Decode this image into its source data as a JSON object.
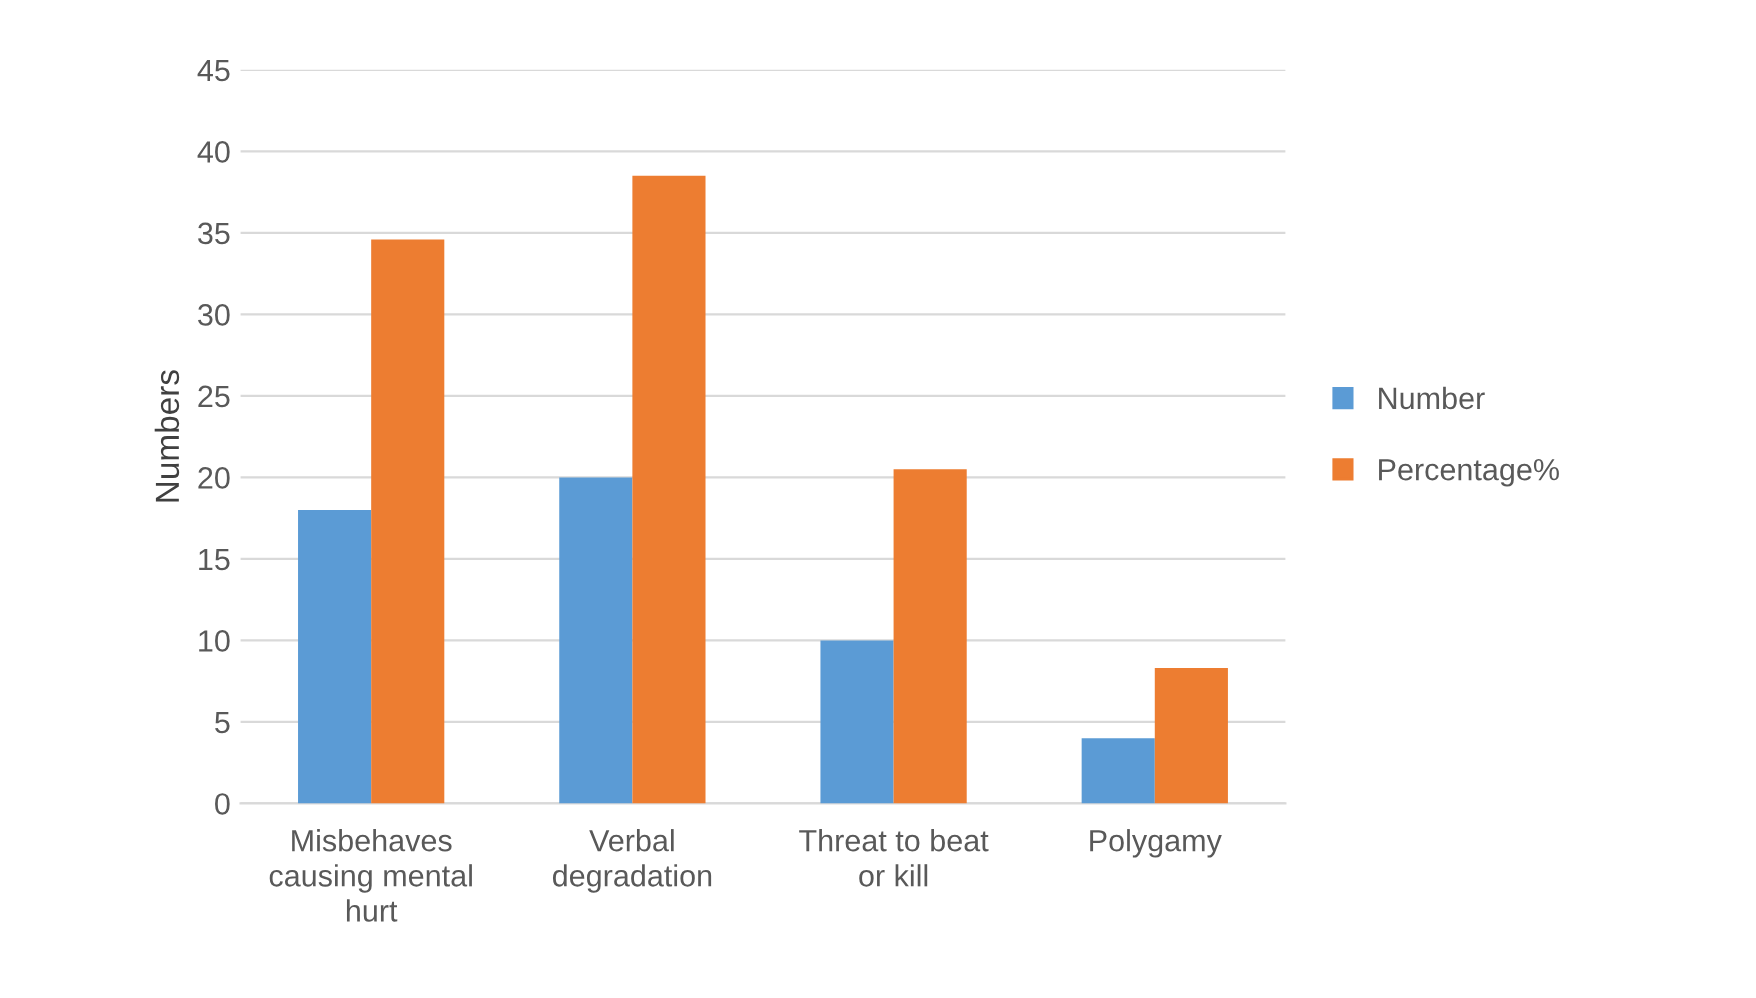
{
  "chart_data": {
    "type": "bar",
    "ylabel": "Numbers",
    "categories": [
      "Misbehaves causing mental hurt",
      "Verbal degradation",
      "Threat to beat or kill",
      "Polygamy"
    ],
    "series": [
      {
        "name": "Number",
        "color": "#5b9bd5",
        "values": [
          18,
          20,
          10,
          4
        ]
      },
      {
        "name": "Percentage%",
        "color": "#ed7d31",
        "values": [
          34.6,
          38.5,
          20.5,
          8.3
        ]
      }
    ],
    "ylim": [
      0,
      45
    ],
    "yticks": [
      0,
      5,
      10,
      15,
      20,
      25,
      30,
      35,
      40,
      45
    ],
    "grid": "y",
    "legend": "right"
  }
}
